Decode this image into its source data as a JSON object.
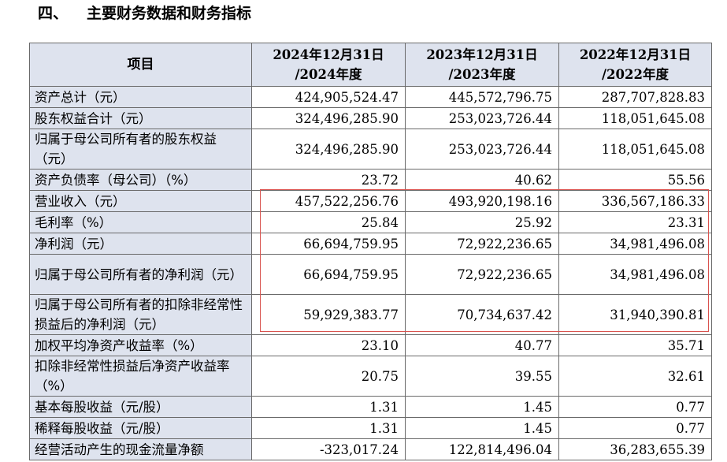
{
  "heading": {
    "number": "四、",
    "title": "主要财务数据和财务指标"
  },
  "columns": [
    {
      "line1": "项目",
      "line2": ""
    },
    {
      "line1": "2024年12月31日",
      "line2": "/2024年度"
    },
    {
      "line1": "2023年12月31日",
      "line2": "/2023年度"
    },
    {
      "line1": "2022年12月31日",
      "line2": "/2022年度"
    }
  ],
  "rows": [
    {
      "label": "资产总计（元）",
      "v2024": "424,905,524.47",
      "v2023": "445,572,796.75",
      "v2022": "287,707,828.83"
    },
    {
      "label": "股东权益合计（元）",
      "v2024": "324,496,285.90",
      "v2023": "253,023,726.44",
      "v2022": "118,051,645.08"
    },
    {
      "label": "归属于母公司所有者的股东权益（元）",
      "v2024": "324,496,285.90",
      "v2023": "253,023,726.44",
      "v2022": "118,051,645.08"
    },
    {
      "label": "资产负债率（母公司）（%）",
      "v2024": "23.72",
      "v2023": "40.62",
      "v2022": "55.56"
    },
    {
      "label": "营业收入（元）",
      "v2024": "457,522,256.76",
      "v2023": "493,920,198.16",
      "v2022": "336,567,186.33"
    },
    {
      "label": "毛利率（%）",
      "v2024": "25.84",
      "v2023": "25.92",
      "v2022": "23.31"
    },
    {
      "label": "净利润（元）",
      "v2024": "66,694,759.95",
      "v2023": "72,922,236.65",
      "v2022": "34,981,496.08"
    },
    {
      "label": "归属于母公司所有者的净利润（元）",
      "v2024": "66,694,759.95",
      "v2023": "72,922,236.65",
      "v2022": "34,981,496.08"
    },
    {
      "label": "归属于母公司所有者的扣除非经常性损益后的净利润（元）",
      "v2024": "59,929,383.77",
      "v2023": "70,734,637.42",
      "v2022": "31,940,390.81"
    },
    {
      "label": "加权平均净资产收益率（%）",
      "v2024": "23.10",
      "v2023": "40.77",
      "v2022": "35.71"
    },
    {
      "label": "扣除非经常性损益后净资产收益率（%）",
      "v2024": "20.75",
      "v2023": "39.55",
      "v2022": "32.61"
    },
    {
      "label": "基本每股收益（元/股）",
      "v2024": "1.31",
      "v2023": "1.45",
      "v2022": "0.77"
    },
    {
      "label": "稀释每股收益（元/股）",
      "v2024": "1.31",
      "v2023": "1.45",
      "v2022": "0.77"
    },
    {
      "label": "经营活动产生的现金流量净额",
      "v2024": "-323,017.24",
      "v2023": "122,814,496.04",
      "v2022": "36,283,655.39"
    }
  ],
  "colors": {
    "header_bg": "#dee3ee",
    "border": "#6a6a6a",
    "highlight_box": "#d9534f"
  }
}
